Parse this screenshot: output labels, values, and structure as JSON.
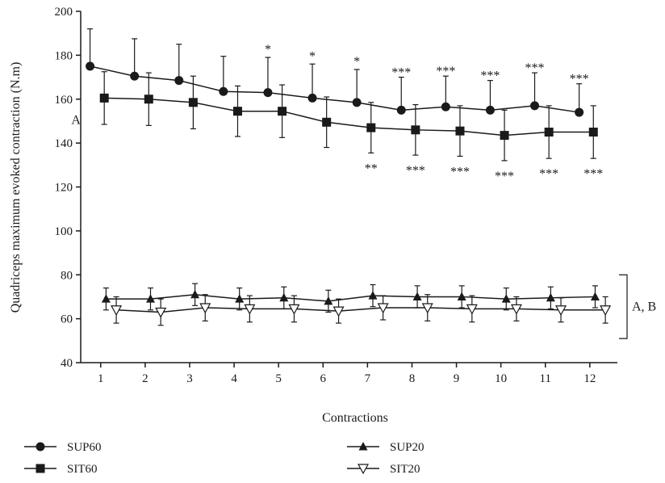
{
  "chart_data": {
    "type": "line",
    "title": "",
    "xlabel": "Contractions",
    "ylabel": "Quadriceps maximum evoked contraction (N.m)",
    "x": [
      1,
      2,
      3,
      4,
      5,
      6,
      7,
      8,
      9,
      10,
      11,
      12
    ],
    "x_ticks": [
      "1",
      "2",
      "3",
      "4",
      "5",
      "6",
      "7",
      "8",
      "9",
      "10",
      "11",
      "12"
    ],
    "ylim": [
      40,
      200
    ],
    "y_ticks": [
      "40",
      "60",
      "80",
      "100",
      "120",
      "140",
      "160",
      "180",
      "200"
    ],
    "grid": false,
    "legend_position": "bottom",
    "series": [
      {
        "name": "SUP60",
        "marker": "circle",
        "offset": -0.24,
        "values": [
          175,
          170.5,
          168.5,
          163.5,
          163,
          160.5,
          158.5,
          155,
          156.5,
          155,
          157,
          154
        ],
        "errors": [
          17,
          17,
          16.5,
          16,
          16,
          15.5,
          15,
          15,
          14,
          13.5,
          15,
          13
        ],
        "error_dir": "up",
        "annotations": [
          "",
          "",
          "",
          "",
          "*",
          "*",
          "*",
          "***",
          "***",
          "***",
          "***",
          "***"
        ]
      },
      {
        "name": "SIT60",
        "marker": "square",
        "offset": 0.08,
        "values": [
          160.5,
          160,
          158.5,
          154.5,
          154.5,
          149.5,
          147,
          146,
          145.5,
          143.5,
          145,
          145
        ],
        "errors": [
          12,
          12,
          12,
          11.5,
          12,
          11.5,
          11.5,
          11.5,
          11.5,
          11.5,
          12,
          12
        ],
        "error_dir": "both",
        "annotations": [
          "A",
          "",
          "",
          "",
          "",
          "",
          "**",
          "***",
          "***",
          "***",
          "***",
          "***"
        ]
      },
      {
        "name": "SUP20",
        "marker": "triangle-up",
        "offset": 0.12,
        "values": [
          69,
          69,
          71,
          69,
          69.5,
          68,
          70.5,
          70,
          70,
          69,
          69.5,
          70
        ],
        "errors": [
          5,
          5,
          5,
          5,
          5,
          5,
          5,
          5,
          5,
          5,
          5,
          5
        ],
        "error_dir": "both",
        "annotations": []
      },
      {
        "name": "SIT20",
        "marker": "triangle-down-open",
        "offset": 0.35,
        "values": [
          64,
          63,
          65,
          64.5,
          64.5,
          63.5,
          65,
          65,
          64.5,
          64.5,
          64,
          64
        ],
        "errors": [
          6,
          6,
          6,
          6,
          6,
          5.5,
          5.5,
          6,
          6,
          5.5,
          5.5,
          6
        ],
        "error_dir": "both",
        "annotations": []
      }
    ],
    "group_annotation": {
      "label": "A, B",
      "range": [
        51,
        80
      ]
    }
  }
}
